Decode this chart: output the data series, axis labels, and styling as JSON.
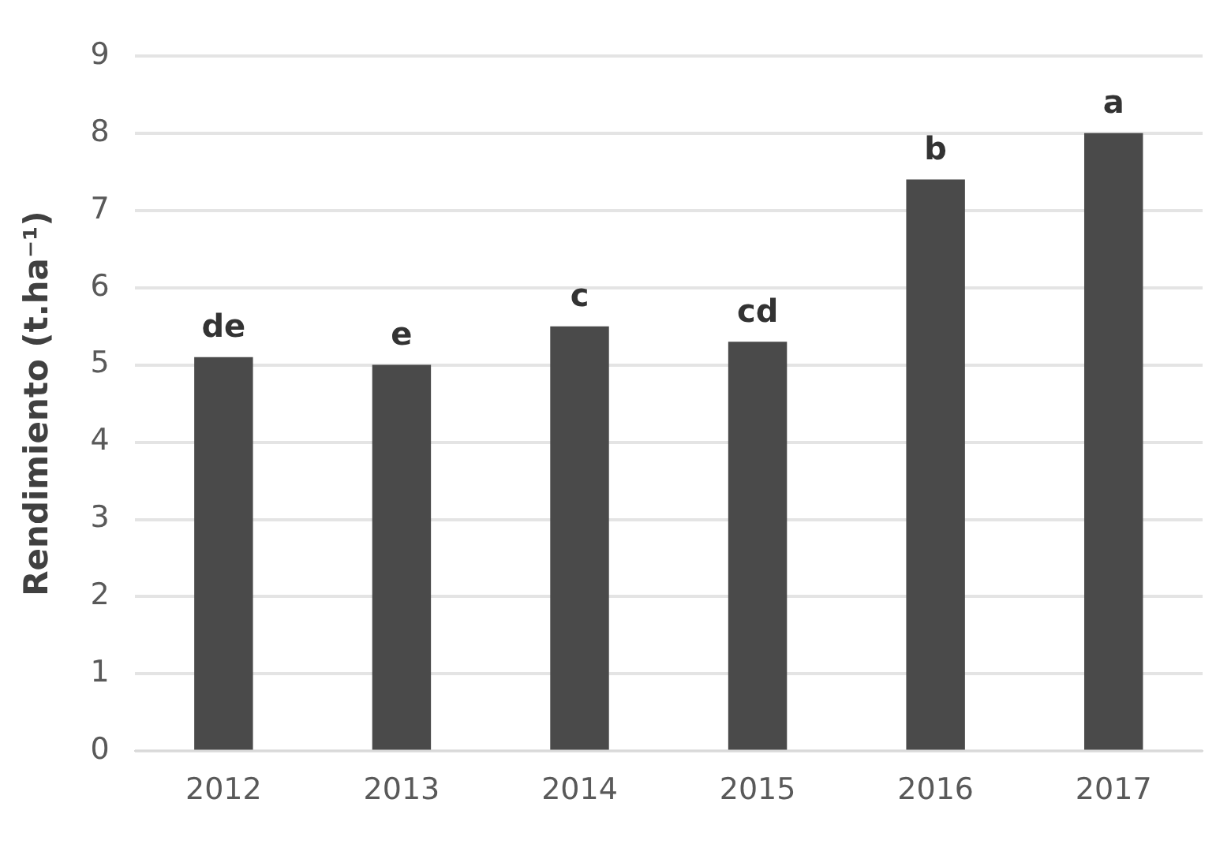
{
  "chart_data": {
    "type": "bar",
    "ylabel": "Rendimiento (t.ha⁻¹)",
    "categories": [
      "2012",
      "2013",
      "2014",
      "2015",
      "2016",
      "2017"
    ],
    "values": [
      5.1,
      5.0,
      5.5,
      5.3,
      7.4,
      8.0
    ],
    "value_labels": [
      "de",
      "e",
      "c",
      "cd",
      "b",
      "a"
    ],
    "color": "#4a4a4a",
    "ylim": [
      0,
      9
    ],
    "yticks": [
      0,
      1,
      2,
      3,
      4,
      5,
      6,
      7,
      8,
      9
    ],
    "grid": "y"
  }
}
